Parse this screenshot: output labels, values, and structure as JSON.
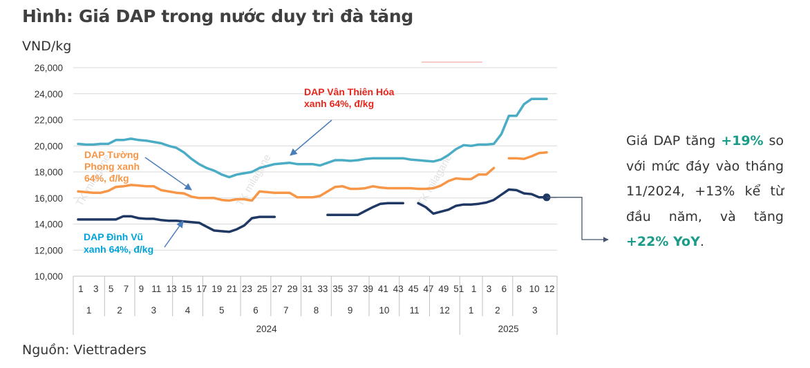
{
  "title": "Hình: Giá DAP trong nước duy trì đà tăng",
  "unit_label": "VND/kg",
  "source": "Nguồn: Viettraders",
  "watermark": "TK milagane",
  "note": {
    "p1": "Giá DAP tăng ",
    "h1": "+19%",
    "p2": " so với mức đáy vào tháng 11/2024, +13% kể từ đầu năm, và tăng ",
    "h2": "+22% YoY",
    "p3": "."
  },
  "chart_data": {
    "type": "line",
    "ylim": [
      10000,
      26000
    ],
    "yticks": [
      10000,
      12000,
      14000,
      16000,
      18000,
      20000,
      22000,
      24000,
      26000
    ],
    "ytick_labels": [
      "10,000",
      "12,000",
      "14,000",
      "16,000",
      "18,000",
      "20,000",
      "22,000",
      "24,000",
      "26,000"
    ],
    "x_week_labels": [
      "1",
      "3",
      "5",
      "7",
      "9",
      "11",
      "13",
      "15",
      "17",
      "19",
      "21",
      "23",
      "25",
      "27",
      "29",
      "31",
      "33",
      "35",
      "37",
      "39",
      "41",
      "43",
      "45",
      "47",
      "49",
      "51",
      "1",
      "3",
      "6",
      "8",
      "10",
      "12"
    ],
    "months_2024": [
      "1",
      "2",
      "3",
      "4",
      "5",
      "6",
      "7",
      "8",
      "9",
      "10",
      "11",
      "12"
    ],
    "months_2025": [
      "1",
      "2",
      "3"
    ],
    "years": [
      "2024",
      "2025"
    ],
    "series": [
      {
        "name": "DAP Vân Thiên Hóa xanh 64%, đ/kg",
        "label_lines": [
          "DAP Vân Thiên Hóa",
          "xanh 64%, đ/kg"
        ],
        "color": "#4bacc6",
        "values": [
          20150,
          20100,
          20100,
          20150,
          20150,
          20450,
          20450,
          20550,
          20450,
          20400,
          20300,
          20200,
          20000,
          19850,
          19500,
          19000,
          18600,
          18300,
          18100,
          17800,
          17600,
          17800,
          17900,
          18000,
          18300,
          18450,
          18600,
          18650,
          18700,
          18600,
          18600,
          18600,
          18500,
          18700,
          18900,
          18900,
          18850,
          18900,
          19000,
          19050,
          19050,
          19050,
          19050,
          19050,
          18950,
          18900,
          18850,
          18800,
          18950,
          19300,
          19750,
          20050,
          20000,
          20100,
          20100,
          20150,
          20900,
          22300,
          22300,
          23200,
          23600,
          23600,
          23600
        ]
      },
      {
        "name": "DAP Tường Phong xanh 64%, đ/kg",
        "label_lines": [
          "DAP Tường",
          "Phong xanh",
          "64%, đ/kg"
        ],
        "color": "#f79646",
        "values": [
          16500,
          16450,
          16400,
          16400,
          16550,
          16850,
          16900,
          17000,
          16950,
          16900,
          16900,
          16600,
          16500,
          16400,
          16350,
          16100,
          16000,
          16000,
          16000,
          15850,
          15800,
          15900,
          15900,
          15800,
          16500,
          16450,
          16400,
          16400,
          16400,
          16050,
          16050,
          16050,
          16150,
          16500,
          16850,
          16900,
          16700,
          16700,
          16750,
          16900,
          16800,
          16750,
          16750,
          16750,
          16750,
          16700,
          16700,
          16750,
          16950,
          17300,
          17500,
          17450,
          17450,
          17800,
          17800,
          18300,
          null,
          19050,
          19050,
          19000,
          19200,
          19450,
          19500
        ]
      },
      {
        "name": "DAP Đình Vũ xanh 64%, đ/kg",
        "label_lines": [
          "DAP Đình Vũ",
          "xanh 64%, đ/kg"
        ],
        "color": "#1f3864",
        "values": [
          14350,
          14350,
          14350,
          14350,
          14350,
          14350,
          14600,
          14600,
          14450,
          14400,
          14400,
          14300,
          14250,
          14250,
          14200,
          14150,
          14100,
          13800,
          13500,
          13450,
          13400,
          13600,
          13900,
          14450,
          14550,
          14550,
          14550,
          null,
          null,
          null,
          null,
          null,
          null,
          14700,
          14700,
          14700,
          14700,
          14700,
          15000,
          15300,
          15550,
          15600,
          15600,
          15600,
          null,
          15600,
          15300,
          14800,
          14950,
          15100,
          15400,
          15500,
          15500,
          15550,
          15650,
          15850,
          16250,
          16650,
          16600,
          16350,
          16300,
          16050,
          16050
        ]
      }
    ]
  }
}
